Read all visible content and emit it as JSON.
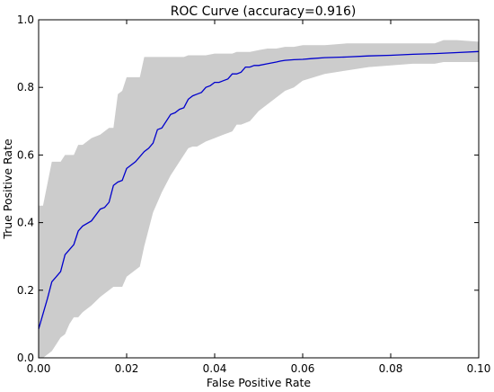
{
  "chart_data": {
    "type": "line",
    "title": "ROC Curve (accuracy=0.916)",
    "xlabel": "False Positive Rate",
    "ylabel": "True Positive Rate",
    "xlim": [
      0.0,
      0.1
    ],
    "ylim": [
      0.0,
      1.0
    ],
    "x_ticks": [
      "0.00",
      "0.02",
      "0.04",
      "0.06",
      "0.08",
      "0.10"
    ],
    "y_ticks": [
      "0.0",
      "0.2",
      "0.4",
      "0.6",
      "0.8",
      "1.0"
    ],
    "grid": false,
    "colors": {
      "line": "#0000cc",
      "band": "#cccccc",
      "axes": "#000000"
    },
    "series": [
      {
        "x": [
          0.0,
          0.001,
          0.002,
          0.003,
          0.004,
          0.005,
          0.006,
          0.007,
          0.008,
          0.009,
          0.01,
          0.012,
          0.014,
          0.015,
          0.016,
          0.017,
          0.018,
          0.019,
          0.02,
          0.022,
          0.024,
          0.025,
          0.026,
          0.027,
          0.028,
          0.03,
          0.031,
          0.032,
          0.033,
          0.034,
          0.035,
          0.036,
          0.037,
          0.038,
          0.039,
          0.04,
          0.041,
          0.042,
          0.043,
          0.044,
          0.045,
          0.046,
          0.047,
          0.048,
          0.049,
          0.05,
          0.052,
          0.054,
          0.055,
          0.056,
          0.058,
          0.06,
          0.062,
          0.065,
          0.07,
          0.075,
          0.08,
          0.085,
          0.09,
          0.095,
          0.1
        ],
        "y": [
          0.085,
          0.13,
          0.175,
          0.225,
          0.24,
          0.255,
          0.305,
          0.32,
          0.335,
          0.375,
          0.39,
          0.405,
          0.44,
          0.445,
          0.46,
          0.51,
          0.52,
          0.525,
          0.56,
          0.58,
          0.61,
          0.62,
          0.635,
          0.675,
          0.68,
          0.72,
          0.725,
          0.735,
          0.74,
          0.765,
          0.775,
          0.78,
          0.785,
          0.8,
          0.805,
          0.815,
          0.815,
          0.82,
          0.825,
          0.84,
          0.84,
          0.845,
          0.86,
          0.86,
          0.865,
          0.865,
          0.87,
          0.875,
          0.878,
          0.88,
          0.882,
          0.883,
          0.885,
          0.888,
          0.89,
          0.893,
          0.895,
          0.898,
          0.9,
          0.903,
          0.906
        ]
      }
    ],
    "band": {
      "x": [
        0.0,
        0.001,
        0.003,
        0.004,
        0.005,
        0.006,
        0.007,
        0.008,
        0.009,
        0.01,
        0.012,
        0.014,
        0.016,
        0.017,
        0.018,
        0.019,
        0.02,
        0.022,
        0.023,
        0.024,
        0.025,
        0.026,
        0.027,
        0.028,
        0.03,
        0.032,
        0.033,
        0.034,
        0.035,
        0.036,
        0.038,
        0.04,
        0.042,
        0.044,
        0.045,
        0.046,
        0.048,
        0.05,
        0.052,
        0.054,
        0.056,
        0.058,
        0.06,
        0.065,
        0.07,
        0.075,
        0.08,
        0.085,
        0.09,
        0.092,
        0.095,
        0.1
      ],
      "upper": [
        0.45,
        0.45,
        0.58,
        0.58,
        0.58,
        0.6,
        0.6,
        0.6,
        0.63,
        0.63,
        0.65,
        0.66,
        0.68,
        0.68,
        0.78,
        0.79,
        0.83,
        0.83,
        0.83,
        0.89,
        0.89,
        0.89,
        0.89,
        0.89,
        0.89,
        0.89,
        0.89,
        0.895,
        0.895,
        0.895,
        0.895,
        0.9,
        0.9,
        0.9,
        0.905,
        0.905,
        0.905,
        0.91,
        0.915,
        0.915,
        0.92,
        0.92,
        0.925,
        0.925,
        0.93,
        0.93,
        0.93,
        0.93,
        0.93,
        0.94,
        0.94,
        0.935
      ],
      "lower": [
        0.0,
        0.0,
        0.02,
        0.04,
        0.06,
        0.07,
        0.1,
        0.12,
        0.12,
        0.135,
        0.155,
        0.18,
        0.2,
        0.21,
        0.21,
        0.21,
        0.24,
        0.26,
        0.27,
        0.33,
        0.38,
        0.43,
        0.46,
        0.49,
        0.54,
        0.58,
        0.6,
        0.62,
        0.625,
        0.625,
        0.64,
        0.65,
        0.66,
        0.67,
        0.69,
        0.69,
        0.7,
        0.73,
        0.75,
        0.77,
        0.79,
        0.8,
        0.82,
        0.84,
        0.85,
        0.86,
        0.865,
        0.87,
        0.87,
        0.875,
        0.875,
        0.875
      ]
    }
  }
}
